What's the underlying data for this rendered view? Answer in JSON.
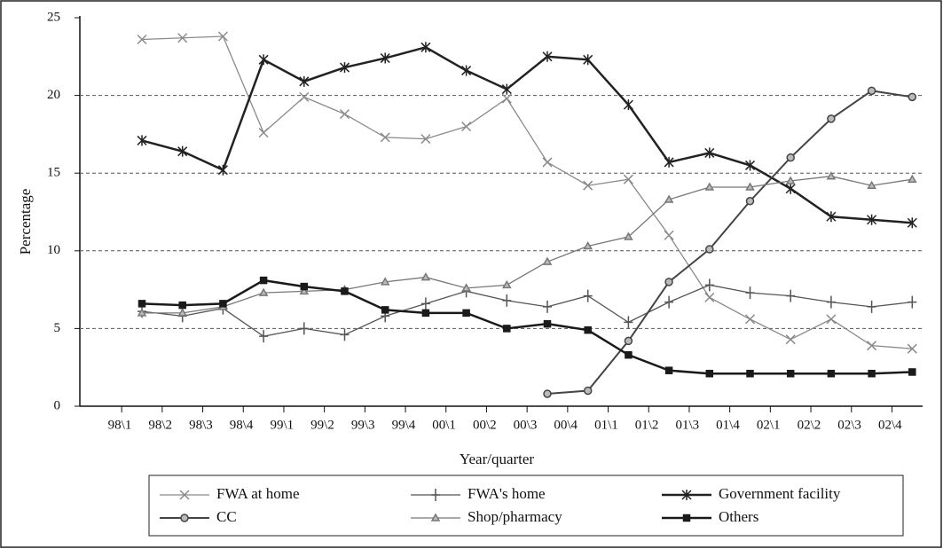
{
  "chart_data": {
    "type": "line",
    "x_label": "Year/quarter",
    "y_label": "Percentage",
    "categories": [
      "98\\1",
      "98\\2",
      "98\\3",
      "98\\4",
      "99\\1",
      "99\\2",
      "99\\3",
      "99\\4",
      "00\\1",
      "00\\2",
      "00\\3",
      "00\\4",
      "01\\1",
      "01\\2",
      "01\\3",
      "01\\4",
      "02\\1",
      "02\\2",
      "02\\3",
      "02\\4"
    ],
    "ylim": [
      0,
      25
    ],
    "yticks": [
      0,
      5,
      10,
      15,
      20,
      25
    ],
    "grid": true,
    "legend": "bottom",
    "series": [
      {
        "name": "FWA at home",
        "color": "#8a8a8a",
        "marker": "x",
        "values": [
          23.6,
          23.7,
          23.8,
          17.6,
          19.9,
          18.8,
          17.3,
          17.2,
          18.0,
          19.8,
          15.7,
          14.2,
          14.6,
          11.0,
          7.0,
          5.6,
          4.3,
          5.6,
          3.9,
          3.7
        ]
      },
      {
        "name": "FWA's home",
        "color": "#555555",
        "marker": "plus",
        "values": [
          6.1,
          5.8,
          6.3,
          4.5,
          5.0,
          4.6,
          5.8,
          6.6,
          7.4,
          6.8,
          6.4,
          7.1,
          5.4,
          6.7,
          7.8,
          7.3,
          7.1,
          6.7,
          6.4,
          6.7
        ]
      },
      {
        "name": "Government facility",
        "color": "#222222",
        "marker": "asterisk",
        "values": [
          17.1,
          16.4,
          15.2,
          22.3,
          20.9,
          21.8,
          22.4,
          23.1,
          21.6,
          20.4,
          22.5,
          22.3,
          19.4,
          15.7,
          16.3,
          15.5,
          14.0,
          12.2,
          12.0,
          11.8
        ]
      },
      {
        "name": "CC",
        "color": "#444444",
        "marker": "circle",
        "values": [
          null,
          null,
          null,
          null,
          null,
          null,
          null,
          null,
          null,
          null,
          0.8,
          1.0,
          4.2,
          8.0,
          10.1,
          13.2,
          16.0,
          18.5,
          20.3,
          19.9
        ]
      },
      {
        "name": "Shop/pharmacy",
        "color": "#777777",
        "marker": "triangle",
        "values": [
          6.0,
          6.0,
          6.4,
          7.3,
          7.4,
          7.5,
          8.0,
          8.3,
          7.6,
          7.8,
          9.3,
          10.3,
          10.9,
          13.3,
          14.1,
          14.1,
          14.5,
          14.8,
          14.2,
          14.6
        ]
      },
      {
        "name": "Others",
        "color": "#1a1a1a",
        "marker": "square",
        "values": [
          6.6,
          6.5,
          6.6,
          8.1,
          7.7,
          7.4,
          6.2,
          6.0,
          6.0,
          5.0,
          5.3,
          4.9,
          3.3,
          2.3,
          2.1,
          2.1,
          2.1,
          2.1,
          2.1,
          2.2
        ]
      }
    ]
  }
}
